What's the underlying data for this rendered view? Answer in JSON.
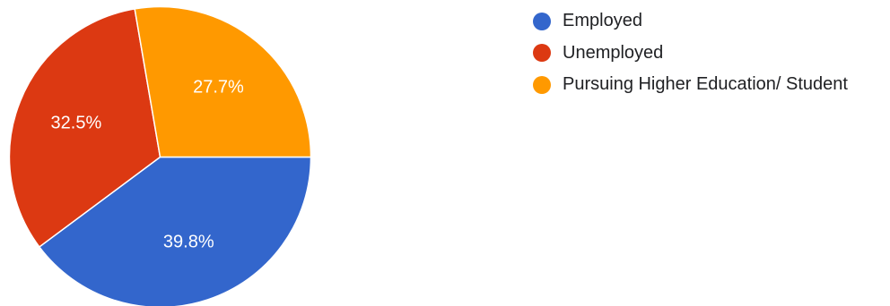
{
  "chart_data": {
    "type": "pie",
    "title": "",
    "legend_position": "top-right",
    "slices": [
      {
        "name": "Employed",
        "value": 39.8,
        "label": "39.8%",
        "color": "#3366cc"
      },
      {
        "name": "Unemployed",
        "value": 32.5,
        "label": "32.5%",
        "color": "#dc3912"
      },
      {
        "name": "Pursuing Higher Education/ Student",
        "value": 27.7,
        "label": "27.7%",
        "color": "#ff9900"
      }
    ]
  }
}
